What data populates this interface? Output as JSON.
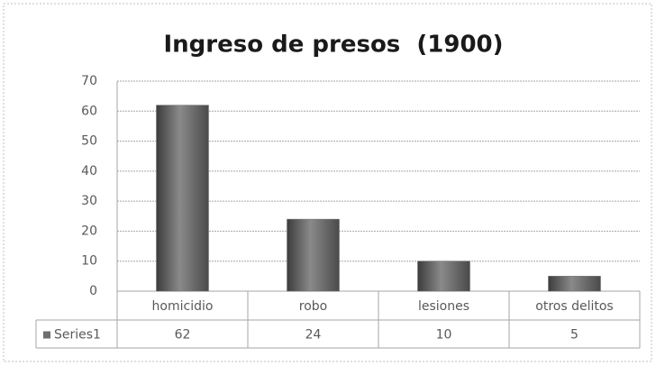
{
  "chart_data": {
    "type": "bar",
    "title": "Ingreso de presos  (1900)",
    "categories": [
      "homicidio",
      "robo",
      "lesiones",
      "otros delitos"
    ],
    "series": [
      {
        "name": "Series1",
        "color": "#6e6e6e",
        "values": [
          62,
          24,
          10,
          5
        ]
      }
    ],
    "ylim": [
      0,
      70
    ],
    "yticks": [
      0,
      10,
      20,
      30,
      40,
      50,
      60,
      70
    ],
    "grid": true,
    "legend": "data-table"
  }
}
